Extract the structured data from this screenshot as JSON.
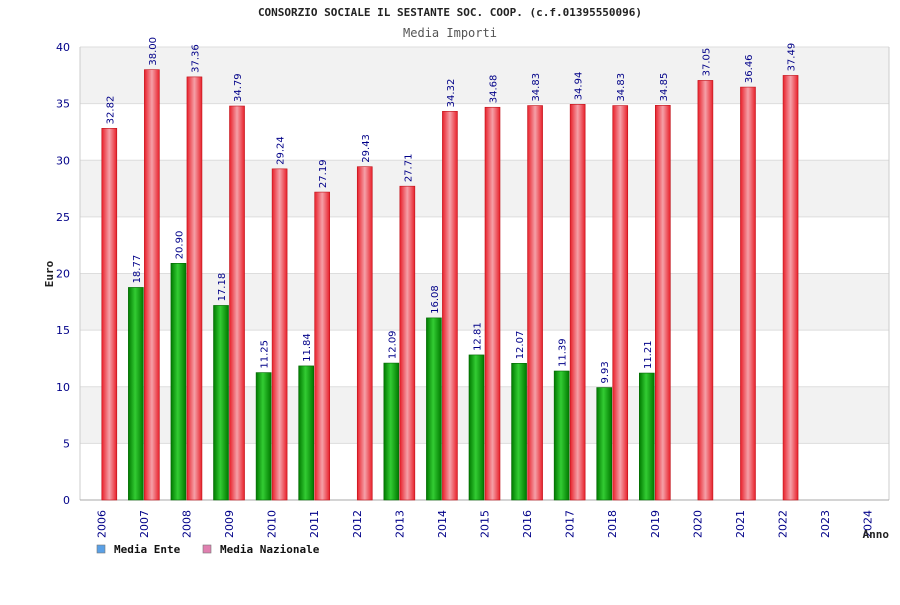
{
  "chart_data": {
    "type": "bar",
    "title": "CONSORZIO SOCIALE IL SESTANTE SOC. COOP. (c.f.01395550096)",
    "subtitle": "Media Importi",
    "xlabel": "Anno",
    "ylabel": "Euro",
    "ylim": [
      0,
      40
    ],
    "yticks": [
      0,
      5,
      10,
      15,
      20,
      25,
      30,
      35,
      40
    ],
    "grid": true,
    "legend_position": "bottom-left",
    "categories": [
      "2006",
      "2007",
      "2008",
      "2009",
      "2010",
      "2011",
      "2012",
      "2013",
      "2014",
      "2015",
      "2016",
      "2017",
      "2018",
      "2019",
      "2020",
      "2021",
      "2022",
      "2023",
      "2024"
    ],
    "series": [
      {
        "name": "Media Ente",
        "color": "#00aa00",
        "legend_color": "#5aa0e6",
        "values": [
          null,
          18.77,
          20.9,
          17.18,
          11.25,
          11.84,
          null,
          12.09,
          16.08,
          12.81,
          12.07,
          11.39,
          9.93,
          11.21,
          null,
          null,
          null,
          null,
          null
        ],
        "labels": [
          null,
          "18.77",
          "20.90",
          "17.18",
          "11.25",
          "11.84",
          null,
          "12.09",
          "16.08",
          "12.81",
          "12.07",
          "11.39",
          "9.93",
          "11.21",
          null,
          null,
          null,
          null,
          null
        ]
      },
      {
        "name": "Media Nazionale",
        "color": "#e8202a",
        "legend_color": "#e080b0",
        "values": [
          32.82,
          38.0,
          37.36,
          34.79,
          29.24,
          27.19,
          29.43,
          27.71,
          34.32,
          34.68,
          34.83,
          34.94,
          34.83,
          34.85,
          37.05,
          36.46,
          37.49,
          null,
          null
        ],
        "labels": [
          "32.82",
          "38.00",
          "37.36",
          "34.79",
          "29.24",
          "27.19",
          "29.43",
          "27.71",
          "34.32",
          "34.68",
          "34.83",
          "34.94",
          "34.83",
          "34.85",
          "37.05",
          "36.46",
          "37.49",
          null,
          null
        ]
      }
    ]
  }
}
